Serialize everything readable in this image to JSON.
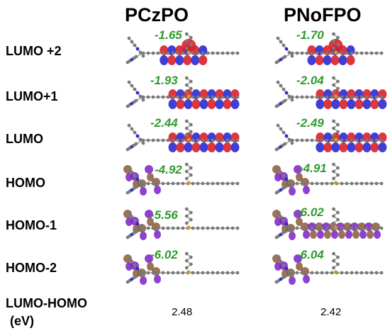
{
  "columns": [
    "PCzPO",
    "PNoFPO"
  ],
  "rows": [
    {
      "label": "LUMO +2",
      "type": "lumo",
      "energies": [
        "-1.65",
        "-1.70"
      ]
    },
    {
      "label": "LUMO+1",
      "type": "lumo",
      "energies": [
        "-1.93",
        "-2.04"
      ]
    },
    {
      "label": "LUMO",
      "type": "lumo",
      "energies": [
        "-2.44",
        "-2.49"
      ]
    },
    {
      "label": "HOMO",
      "type": "homo",
      "energies": [
        "-4.92",
        "-4.91"
      ]
    },
    {
      "label": "HOMO-1",
      "type": "homo",
      "energies": [
        "-5.56",
        "-6.02"
      ]
    },
    {
      "label": "HOMO-2",
      "type": "homo",
      "energies": [
        "-6.02",
        "-6.04"
      ]
    }
  ],
  "gap": {
    "label_line1": "LUMO-HOMO",
    "label_line2": "(eV)",
    "values": [
      "2.48",
      "2.42"
    ]
  },
  "colors": {
    "energy_text": "#2e9a2e",
    "lumo_positive": "#d8202a",
    "lumo_negative": "#2a2ad0",
    "homo_positive": "#8a5a3a",
    "homo_negative": "#7a20c8",
    "atom_carbon": "#7a7a7a",
    "atom_nitrogen": "#2a2ad8",
    "atom_phosphorus": "#c8a020"
  }
}
